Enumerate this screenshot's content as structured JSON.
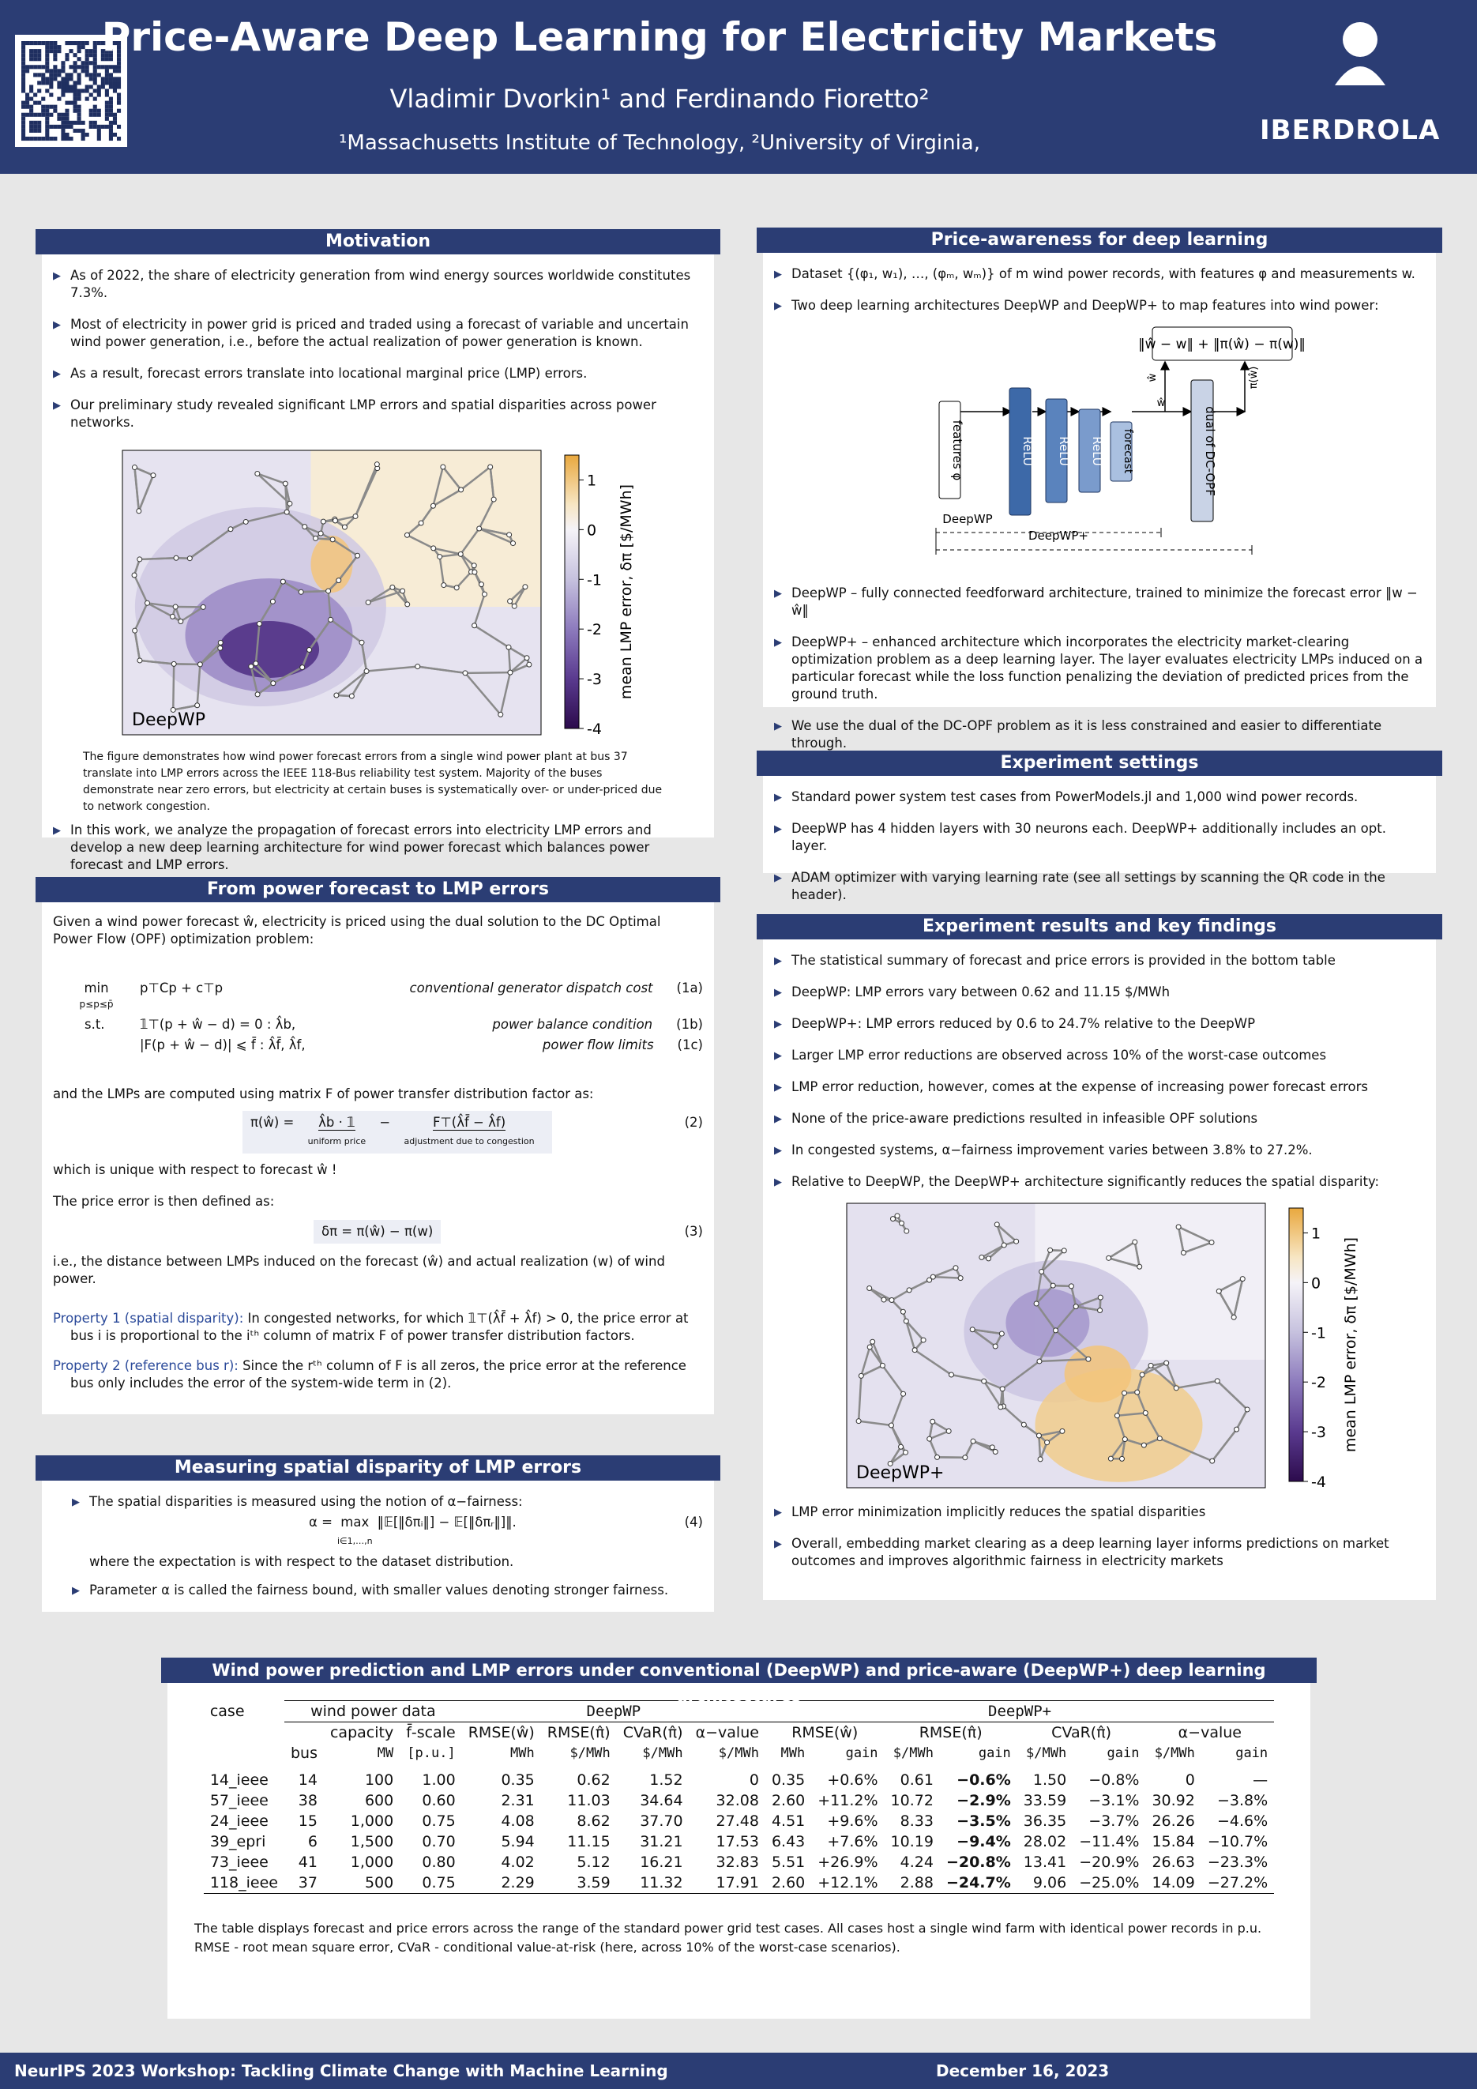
{
  "header": {
    "title": "Price-Aware Deep Learning for Electricity Markets",
    "authors": "Vladimir Dvorkin¹ and Ferdinando Fioretto²",
    "affiliations": "¹Massachusetts Institute of Technology, ²University of Virginia,",
    "logo": "IBERDROLA"
  },
  "motivation": {
    "title": "Motivation",
    "bullets": [
      "As of 2022, the share of electricity generation from wind energy sources worldwide constitutes 7.3%.",
      "Most of electricity in power grid is priced and traded using a forecast of variable and uncertain wind power generation, i.e., before the actual realization of power generation is known.",
      "As a result, forecast errors translate into locational marginal price (LMP) errors.",
      "Our preliminary study revealed significant LMP errors and spatial disparities across power networks."
    ],
    "figure": {
      "label": "DeepWP",
      "colorbar_label": "mean LMP error, δπ [$/MWh]",
      "lim": [
        -4,
        1.5
      ],
      "ticks": [
        1,
        0,
        -1,
        -2,
        -3,
        -4
      ]
    },
    "caption": "The figure demonstrates how wind power forecast errors from a single wind power plant at bus 37 translate into LMP errors across the IEEE 118-Bus reliability test system. Majority of the buses demonstrate near zero errors, but electricity at certain buses is systematically over- or under-priced due to network congestion.",
    "bullets2": [
      "In this work, we analyze the propagation of forecast errors into electricity LMP errors and develop a new deep learning architecture for wind power forecast which balances power forecast and LMP errors."
    ]
  },
  "forecast": {
    "title": "From power forecast to LMP errors",
    "intro": "Given a wind power forecast ŵ, electricity is priced using the dual solution to the DC Optimal Power Flow (OPF) optimization problem:",
    "min": "min",
    "min_sub": "p≤p≤p̄",
    "st": "s.t.",
    "opf": [
      {
        "expr": "p⊤Cp + c⊤p",
        "note": "conventional generator dispatch cost",
        "tag": "(1a)"
      },
      {
        "expr": "𝟙⊤(p + ŵ − d) = 0 : λ̂b,",
        "note": "power balance condition",
        "tag": "(1b)"
      },
      {
        "expr": "|F(p + ŵ − d)| ⩽ f̄ : λ̂f̄, λ̂f,",
        "note": "power flow limits",
        "tag": "(1c)"
      }
    ],
    "lmp_intro": "and the LMPs are computed using matrix F of power transfer distribution factor as:",
    "eq2": {
      "lhs": "π(ŵ) =",
      "term1": "λ̂b · 𝟙",
      "brace1": "uniform price",
      "op": "−",
      "term2": "F⊤(λ̂f̄ − λ̂f)",
      "brace2": "adjustment due to congestion",
      "tag": "(2)"
    },
    "unique": "which is unique with respect to forecast ŵ !",
    "err_intro": "The price error is then defined as:",
    "eq3": {
      "expr": "δπ = π(ŵ) − π(w)",
      "tag": "(3)"
    },
    "eq3_note": "i.e., the distance between LMPs induced on the forecast (ŵ) and actual realization (w) of wind power.",
    "props": [
      {
        "name": "Property 1 (spatial disparity):",
        "text": "In congested networks, for which 𝟙⊤(λ̂f̄ + λ̂f) > 0, the price error at bus i is proportional to the iᵗʰ column of matrix F of power transfer distribution factors."
      },
      {
        "name": "Property 2 (reference bus r):",
        "text": "Since the rᵗʰ column of F is all zeros, the price error at the reference bus only includes the error of the system-wide term in (2)."
      }
    ]
  },
  "measuring": {
    "title": "Measuring spatial disparity of LMP errors",
    "b1": "The spatial disparities is measured using the notion of α−fairness:",
    "eq4": {
      "lhs": "α =",
      "max": "max",
      "sub": "i∈1,…,n",
      "expr": "‖𝔼[‖δπᵢ‖] − 𝔼[‖δπᵣ‖]‖.",
      "tag": "(4)"
    },
    "note": "where the expectation is with respect to the dataset distribution.",
    "b2": "Parameter α is called the fairness bound, with smaller values denoting stronger fairness."
  },
  "price": {
    "title": "Price-awareness for deep learning",
    "bullets": [
      "Dataset {(φ₁, w₁), …, (φₘ, wₘ)} of m wind power records, with features φ and measurements w.",
      "Two deep learning architectures DeepWP and DeepWP+ to map features into wind power:"
    ],
    "diagram": {
      "loss": "‖ŵ − w‖ + ‖π(ŵ) − π(w)‖",
      "features": "features φ",
      "relu": [
        "ReLU",
        "ReLU",
        "ReLU"
      ],
      "forecast": "forecast",
      "dual": "dual of DC-OPF",
      "w_hat": "ŵ",
      "w_hat2": "ŵ",
      "pi_hat": "π(ŵ)",
      "deepwp": "DeepWP",
      "deepwpplus": "DeepWP+"
    },
    "bullets2": [
      "DeepWP – fully connected feedforward architecture, trained to minimize the forecast error ‖w − ŵ‖",
      "DeepWP+ – enhanced architecture which incorporates the electricity market-clearing optimization problem as a deep learning layer. The layer evaluates electricity LMPs induced on a particular forecast while the loss function penalizing the deviation of predicted prices from the ground truth.",
      "We use the dual of the DC-OPF problem as it is less constrained and easier to differentiate through."
    ]
  },
  "settings": {
    "title": "Experiment settings",
    "bullets": [
      "Standard power system test cases from PowerModels.jl and 1,000 wind power records.",
      "DeepWP has 4 hidden layers with 30 neurons each. DeepWP+ additionally includes an opt. layer.",
      "ADAM optimizer with varying learning rate (see all settings by scanning the QR code in the header)."
    ]
  },
  "results": {
    "title": "Experiment results and key findings",
    "bullets": [
      "The statistical summary of forecast and price errors is provided in the bottom table",
      "DeepWP: LMP errors vary between 0.62 and 11.15 $/MWh",
      "DeepWP+: LMP errors reduced by 0.6 to 24.7% relative to the DeepWP",
      "Larger LMP error reductions are observed across 10% of the worst-case outcomes",
      "LMP error reduction, however, comes at the expense of increasing power forecast errors",
      "None of the price-aware predictions resulted in infeasible OPF solutions",
      "In congested systems, α−fairness improvement varies between 3.8% to 27.2%.",
      "Relative to DeepWP, the DeepWP+ architecture significantly reduces the spatial disparity:"
    ],
    "figure": {
      "label": "DeepWP+",
      "colorbar_label": "mean LMP error, δπ [$/MWh]",
      "lim": [
        -4,
        1.5
      ],
      "ticks": [
        1,
        0,
        -1,
        -2,
        -3,
        -4
      ]
    },
    "bullets2": [
      "LMP error minimization implicitly reduces the spatial disparities",
      "Overall, embedding market clearing as a deep learning layer informs predictions on market outcomes and improves algorithmic fairness in electricity markets"
    ]
  },
  "table": {
    "title": "Wind power prediction and LMP errors under conventional (DeepWP) and price-aware (DeepWP+) deep learning architectures",
    "head1": [
      "case",
      "wind power data",
      "DeepWP",
      "DeepWP+"
    ],
    "head2": [
      "bus",
      "capacity",
      "f̄-scale",
      "RMSE(ŵ)",
      "RMSE(π̂)",
      "CVaR(π̂)",
      "α−value",
      "RMSE(ŵ)",
      "RMSE(π̂)",
      "CVaR(π̂)",
      "α−value"
    ],
    "head3": [
      "MW",
      "[p.u.]",
      "MWh",
      "$/MWh",
      "$/MWh",
      "$/MWh",
      "MWh",
      "gain",
      "$/MWh",
      "gain",
      "$/MWh",
      "gain",
      "$/MWh",
      "gain"
    ],
    "rows": [
      [
        "14_ieee",
        "14",
        "100",
        "1.00",
        "0.35",
        "0.62",
        "1.52",
        "0",
        "0.35",
        "+0.6%",
        "0.61",
        "−0.6%",
        "1.50",
        "−0.8%",
        "0",
        "—"
      ],
      [
        "57_ieee",
        "38",
        "600",
        "0.60",
        "2.31",
        "11.03",
        "34.64",
        "32.08",
        "2.60",
        "+11.2%",
        "10.72",
        "−2.9%",
        "33.59",
        "−3.1%",
        "30.92",
        "−3.8%"
      ],
      [
        "24_ieee",
        "15",
        "1,000",
        "0.75",
        "4.08",
        "8.62",
        "37.70",
        "27.48",
        "4.51",
        "+9.6%",
        "8.33",
        "−3.5%",
        "36.35",
        "−3.7%",
        "26.26",
        "−4.6%"
      ],
      [
        "39_epri",
        "6",
        "1,500",
        "0.70",
        "5.94",
        "11.15",
        "31.21",
        "17.53",
        "6.43",
        "+7.6%",
        "10.19",
        "−9.4%",
        "28.02",
        "−11.4%",
        "15.84",
        "−10.7%"
      ],
      [
        "73_ieee",
        "41",
        "1,000",
        "0.80",
        "4.02",
        "5.12",
        "16.21",
        "32.83",
        "5.51",
        "+26.9%",
        "4.24",
        "−20.8%",
        "13.41",
        "−20.9%",
        "26.63",
        "−23.3%"
      ],
      [
        "118_ieee",
        "37",
        "500",
        "0.75",
        "2.29",
        "3.59",
        "11.32",
        "17.91",
        "2.60",
        "+12.1%",
        "2.88",
        "−24.7%",
        "9.06",
        "−25.0%",
        "14.09",
        "−27.2%"
      ]
    ],
    "caption": "The table displays forecast and price errors across the range of the standard power grid test cases. All cases host a single wind farm with identical power records in p.u. RMSE - root mean square error, CVaR - conditional value-at-risk (here, across 10% of the worst-case scenarios)."
  },
  "footer": {
    "left": "NeurIPS 2023 Workshop: Tackling Climate Change with Machine Learning",
    "right": "December 16, 2023"
  }
}
